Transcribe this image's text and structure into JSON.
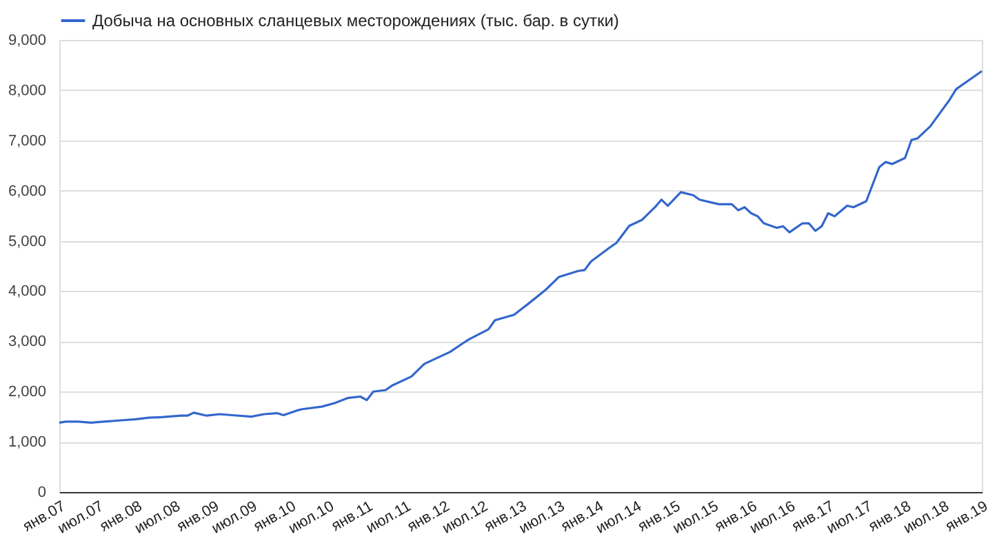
{
  "chart_data": {
    "type": "line",
    "legend": "top left",
    "grid": "y",
    "line_style": "solid",
    "marker": "none",
    "xlim": [
      "2007-01",
      "2019-01"
    ],
    "xticks": [
      {
        "value": "2007-01",
        "label": "янв.07"
      },
      {
        "value": "2007-07",
        "label": "июл.07"
      },
      {
        "value": "2008-01",
        "label": "янв.08"
      },
      {
        "value": "2008-07",
        "label": "июл.08"
      },
      {
        "value": "2009-01",
        "label": "янв.09"
      },
      {
        "value": "2009-07",
        "label": "июл.09"
      },
      {
        "value": "2010-01",
        "label": "янв.10"
      },
      {
        "value": "2010-07",
        "label": "июл.10"
      },
      {
        "value": "2011-01",
        "label": "янв.11"
      },
      {
        "value": "2011-07",
        "label": "июл.11"
      },
      {
        "value": "2012-01",
        "label": "янв.12"
      },
      {
        "value": "2012-07",
        "label": "июл.12"
      },
      {
        "value": "2013-01",
        "label": "янв.13"
      },
      {
        "value": "2013-07",
        "label": "июл.13"
      },
      {
        "value": "2014-01",
        "label": "янв.14"
      },
      {
        "value": "2014-07",
        "label": "июл.14"
      },
      {
        "value": "2015-01",
        "label": "янв.15"
      },
      {
        "value": "2015-07",
        "label": "июл.15"
      },
      {
        "value": "2016-01",
        "label": "янв.16"
      },
      {
        "value": "2016-07",
        "label": "июл.16"
      },
      {
        "value": "2017-01",
        "label": "янв.17"
      },
      {
        "value": "2017-07",
        "label": "июл.17"
      },
      {
        "value": "2018-01",
        "label": "янв.18"
      },
      {
        "value": "2018-07",
        "label": "июл.18"
      },
      {
        "value": "2019-01",
        "label": "янв.19"
      }
    ],
    "ylim": [
      0,
      9000
    ],
    "yticks": [
      {
        "value": 0,
        "label": "0"
      },
      {
        "value": 1000,
        "label": "1,000"
      },
      {
        "value": 2000,
        "label": "2,000"
      },
      {
        "value": 3000,
        "label": "3,000"
      },
      {
        "value": 4000,
        "label": "4,000"
      },
      {
        "value": 5000,
        "label": "5,000"
      },
      {
        "value": 6000,
        "label": "6,000"
      },
      {
        "value": 7000,
        "label": "7,000"
      },
      {
        "value": 8000,
        "label": "8,000"
      },
      {
        "value": 9000,
        "label": "9,000"
      }
    ],
    "x": [
      "2007-01",
      "2007-02",
      "2007-04",
      "2007-06",
      "2007-08",
      "2007-11",
      "2008-01",
      "2008-03",
      "2008-05",
      "2008-08",
      "2008-09",
      "2008-10",
      "2008-12",
      "2009-02",
      "2009-04",
      "2009-07",
      "2009-09",
      "2009-11",
      "2009-12",
      "2010-02",
      "2010-03",
      "2010-06",
      "2010-08",
      "2010-10",
      "2010-12",
      "2011-01",
      "2011-02",
      "2011-04",
      "2011-05",
      "2011-08",
      "2011-10",
      "2012-02",
      "2012-04",
      "2012-05",
      "2012-08",
      "2012-09",
      "2012-12",
      "2013-02",
      "2013-05",
      "2013-07",
      "2013-10",
      "2013-11",
      "2013-12",
      "2014-03",
      "2014-04",
      "2014-06",
      "2014-08",
      "2014-10",
      "2014-11",
      "2014-12",
      "2015-02",
      "2015-04",
      "2015-05",
      "2015-08",
      "2015-10",
      "2015-11",
      "2015-12",
      "2016-01",
      "2016-02",
      "2016-03",
      "2016-05",
      "2016-06",
      "2016-07",
      "2016-09",
      "2016-10",
      "2016-11",
      "2016-12",
      "2017-01",
      "2017-02",
      "2017-04",
      "2017-05",
      "2017-07",
      "2017-09",
      "2017-10",
      "2017-11",
      "2018-01",
      "2018-02",
      "2018-03",
      "2018-05",
      "2018-08",
      "2018-09",
      "2018-11",
      "2019-01"
    ],
    "series": [
      {
        "name": "Добыча на основных сланцевых месторождениях (тыс. бар. в сутки)",
        "color": "#3366cc",
        "values": [
          1380,
          1400,
          1400,
          1380,
          1400,
          1430,
          1450,
          1480,
          1490,
          1520,
          1520,
          1580,
          1520,
          1550,
          1530,
          1500,
          1550,
          1570,
          1530,
          1620,
          1650,
          1700,
          1770,
          1870,
          1900,
          1830,
          2000,
          2030,
          2120,
          2300,
          2550,
          2790,
          2960,
          3040,
          3240,
          3420,
          3530,
          3730,
          4030,
          4280,
          4400,
          4420,
          4590,
          4870,
          4960,
          5300,
          5420,
          5670,
          5820,
          5700,
          5970,
          5910,
          5820,
          5730,
          5730,
          5610,
          5670,
          5550,
          5490,
          5350,
          5260,
          5290,
          5170,
          5350,
          5350,
          5200,
          5290,
          5550,
          5490,
          5700,
          5670,
          5790,
          6470,
          6570,
          6530,
          6650,
          7010,
          7040,
          7280,
          7810,
          8020,
          8200,
          8380
        ]
      }
    ]
  }
}
